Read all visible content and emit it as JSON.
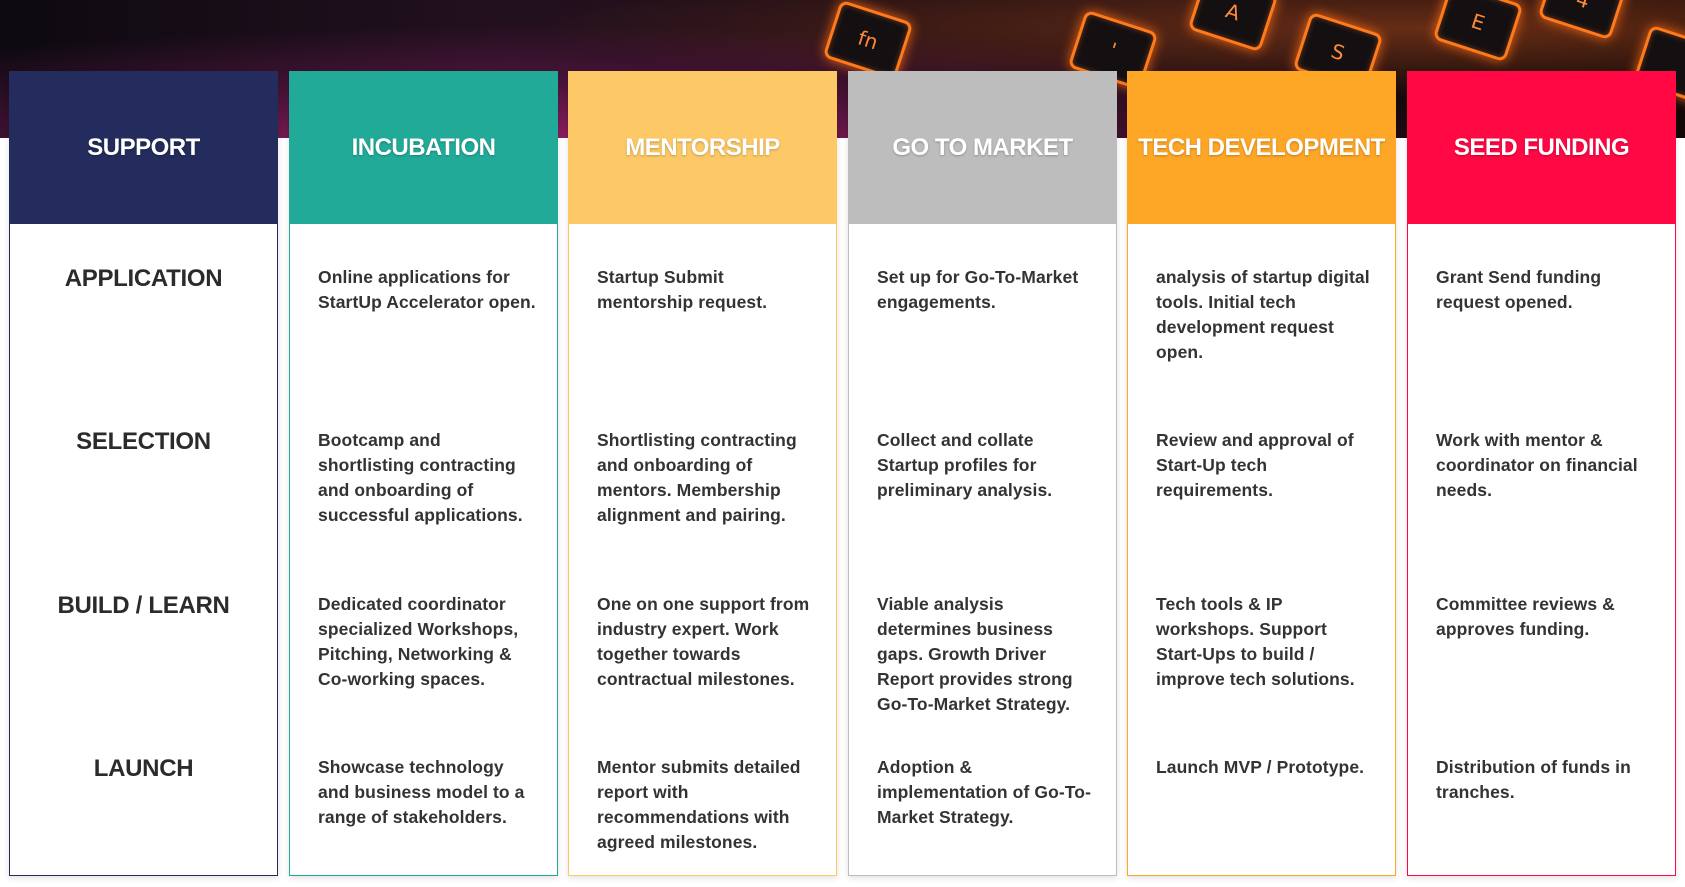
{
  "hero": {
    "keys": [
      "fn",
      "A",
      "S",
      "E",
      "4",
      "'"
    ]
  },
  "support": {
    "title": "SUPPORT",
    "color": "#232c5c",
    "stages": [
      "APPLICATION",
      "SELECTION",
      "BUILD / LEARN",
      "LAUNCH"
    ]
  },
  "columns": [
    {
      "title": "INCUBATION",
      "color": "#22aa99",
      "cells": [
        "Online applications for StartUp Accelerator open.",
        "Bootcamp and shortlisting contracting and onboarding of successful applications.",
        "Dedicated coordinator specialized Workshops, Pitching, Networking & Co-working spaces.",
        "Showcase technology and business model to a range of stakeholders."
      ]
    },
    {
      "title": "MENTORSHIP",
      "color": "#fdc966",
      "cells": [
        "Startup Submit mentorship request.",
        "Shortlisting contracting and onboarding of mentors. Membership alignment and pairing.",
        "One on one support from industry expert. Work together towards contractual milestones.",
        "Mentor submits detailed report with recommendations with agreed milestones."
      ]
    },
    {
      "title": "GO TO MARKET",
      "color": "#bdbdbd",
      "cells": [
        "Set up for Go-To-Market engagements.",
        "Collect and collate Startup profiles for preliminary analysis.",
        "Viable analysis determines business gaps. Growth Driver Report provides strong Go-To-Market Strategy.",
        "Adoption & implementation of Go-To-Market Strategy."
      ]
    },
    {
      "title": "TECH DEVELOPMENT",
      "color": "#fea626",
      "cells": [
        "analysis of startup digital tools. Initial tech development request open.",
        "Review and approval of Start-Up tech requirements.",
        "Tech tools & IP workshops. Support Start-Ups to build / improve tech solutions.",
        "Launch MVP / Prototype."
      ]
    },
    {
      "title": "SEED FUNDING",
      "color": "#ff0844",
      "cells": [
        "Grant Send funding request opened.",
        "Work with mentor & coordinator on financial needs.",
        "Committee reviews & approves funding.",
        "Distribution of funds in tranches."
      ]
    }
  ]
}
